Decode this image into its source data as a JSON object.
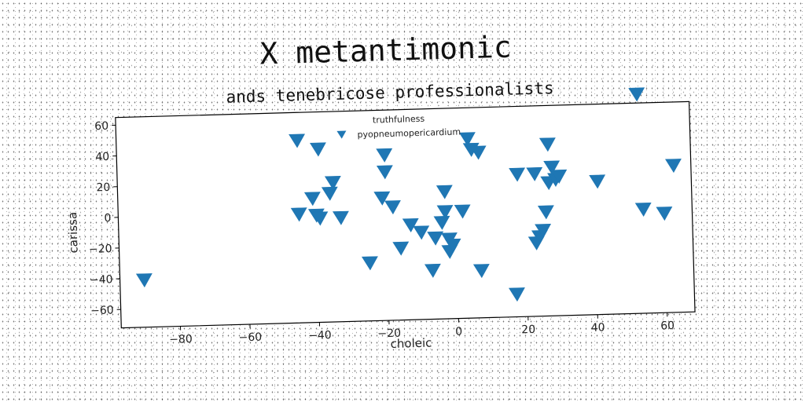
{
  "chart_data": {
    "type": "scatter",
    "title": "X metantimonic",
    "subtitle": "ands tenebricose professionalists",
    "xlabel": "choleic",
    "ylabel": "carissa",
    "xlim": [
      -97,
      68
    ],
    "ylim": [
      -72,
      65
    ],
    "xticks": [
      -80,
      -60,
      -40,
      -20,
      0,
      20,
      40,
      60
    ],
    "yticks": [
      -60,
      -40,
      -20,
      0,
      20,
      40,
      60
    ],
    "xtick_labels": [
      "−80",
      "−60",
      "−40",
      "−20",
      "0",
      "20",
      "40",
      "60"
    ],
    "ytick_labels": [
      "−60",
      "−40",
      "−20",
      "0",
      "20",
      "40",
      "60"
    ],
    "legend": {
      "title": "truthfulness",
      "position": "top-center"
    },
    "marker": "triangle-down",
    "color": "#1f77b4",
    "series": [
      {
        "name": "pyopneumopericardium",
        "points": [
          [
            -90,
            -41
          ],
          [
            -45,
            47
          ],
          [
            -39,
            41
          ],
          [
            -35,
            19
          ],
          [
            -36,
            12
          ],
          [
            -41,
            9
          ],
          [
            -45,
            -1
          ],
          [
            -40,
            -2
          ],
          [
            -39,
            -4
          ],
          [
            -33,
            -4
          ],
          [
            -25,
            -34
          ],
          [
            -20,
            36
          ],
          [
            -20,
            25
          ],
          [
            -21,
            8
          ],
          [
            -18,
            2
          ],
          [
            -16,
            -25
          ],
          [
            -13,
            -10
          ],
          [
            -10,
            -15
          ],
          [
            -7,
            -40
          ],
          [
            -6,
            -19
          ],
          [
            -4,
            -9
          ],
          [
            -3,
            -2
          ],
          [
            -3,
            11
          ],
          [
            -2,
            -20
          ],
          [
            -2,
            -28
          ],
          [
            -1,
            -24
          ],
          [
            2,
            -2
          ],
          [
            4,
            45
          ],
          [
            5,
            38
          ],
          [
            7,
            36
          ],
          [
            7,
            -41
          ],
          [
            17,
            -57
          ],
          [
            18,
            21
          ],
          [
            23,
            21
          ],
          [
            23,
            -24
          ],
          [
            24,
            -20
          ],
          [
            25,
            -16
          ],
          [
            26,
            -4
          ],
          [
            27,
            40
          ],
          [
            27,
            15
          ],
          [
            28,
            25
          ],
          [
            29,
            17
          ],
          [
            30,
            19
          ],
          [
            41,
            15
          ],
          [
            53,
            71
          ],
          [
            54,
            -4
          ],
          [
            60,
            -7
          ],
          [
            63,
            24
          ]
        ]
      }
    ]
  }
}
